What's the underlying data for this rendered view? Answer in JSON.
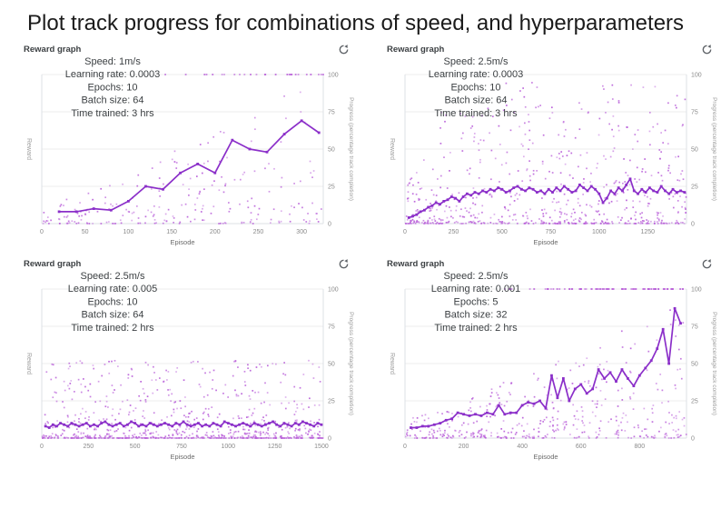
{
  "title": "Plot track progress for combinations of speed, and hyperparameters",
  "colors": {
    "line": "#8b2fc9",
    "scatter": "#b95fd9",
    "grid": "#ececec",
    "axis": "#dde1e6",
    "tick_text": "#8a8a8a",
    "label_text": "#6b6b6b",
    "axis_title": "#9e9e9e",
    "annotation": "#3c4043",
    "header": "#3c4043",
    "icon": "#5f6368"
  },
  "chart_data": [
    {
      "type": "scatter",
      "header": "Reward graph",
      "icon": "refresh-icon",
      "xlabel": "Episode",
      "ylabel_left": "Reward",
      "ylabel_right": "Progress (percentage track completion)",
      "ylim": [
        0,
        100
      ],
      "y_ticks_right": [
        0,
        25,
        50,
        75,
        100
      ],
      "x_ticks": [
        0,
        50,
        100,
        150,
        200,
        250,
        300
      ],
      "x_max": 325,
      "annotations": [
        "Speed: 1m/s",
        "Learning rate: 0.0003",
        "Epochs: 10",
        "Batch size: 64",
        "Time trained: 3 hrs"
      ],
      "line": {
        "x_start": 20,
        "x_step": 20,
        "y": [
          8,
          8,
          10,
          9,
          15,
          25,
          23,
          34,
          40,
          34,
          56,
          50,
          48,
          60,
          69,
          61
        ]
      },
      "scatter": {
        "seed": 11,
        "count": 235,
        "y_power": 2.2,
        "y_base": 14,
        "y_growth": 86,
        "growth_power": 1.2,
        "ramp_x": 0,
        "ramp_min": 1,
        "top_row": {
          "count": 26,
          "x_min": 130,
          "x_max": 325,
          "skew": 0.55
        }
      }
    },
    {
      "type": "scatter",
      "header": "Reward graph",
      "icon": "refresh-icon",
      "xlabel": "Episode",
      "ylabel_left": "Reward",
      "ylabel_right": "Progress (percentage track completion)",
      "ylim": [
        0,
        100
      ],
      "y_ticks_right": [
        0,
        25,
        50,
        75,
        100
      ],
      "x_ticks": [
        0,
        250,
        500,
        750,
        1000,
        1250
      ],
      "x_max": 1450,
      "annotations": [
        "Speed: 2.5m/s",
        "Learning rate: 0.0003",
        "Epochs: 10",
        "Batch size: 64",
        "Time trained: 3 hrs"
      ],
      "line": {
        "x_start": 20,
        "x_step": 20,
        "y": [
          4,
          5,
          6,
          8,
          9,
          11,
          12,
          14,
          13,
          15,
          16,
          18,
          17,
          15,
          18,
          20,
          19,
          21,
          20,
          22,
          21,
          23,
          22,
          24,
          23,
          21,
          22,
          24,
          25,
          23,
          22,
          24,
          23,
          21,
          22,
          20,
          23,
          21,
          24,
          22,
          25,
          23,
          21,
          22,
          26,
          24,
          22,
          25,
          23,
          20,
          14,
          17,
          22,
          20,
          24,
          22,
          26,
          30,
          22,
          20,
          23,
          21,
          24,
          22,
          21,
          25,
          22,
          20,
          23,
          21,
          22,
          21
        ]
      },
      "scatter": {
        "seed": 22,
        "count": 680,
        "y_power": 3,
        "y_base": 95,
        "y_growth": 0,
        "growth_power": 1,
        "ramp_x": 250,
        "ramp_min": 0.25,
        "top_row": null
      }
    },
    {
      "type": "scatter",
      "header": "Reward graph",
      "icon": "refresh-icon",
      "xlabel": "Episode",
      "ylabel_left": "Reward",
      "ylabel_right": "Progress (percentage track completion)",
      "ylim": [
        0,
        100
      ],
      "y_ticks_right": [
        0,
        25,
        50,
        75,
        100
      ],
      "x_ticks": [
        0,
        250,
        500,
        750,
        1000,
        1250,
        1500
      ],
      "x_max": 1510,
      "annotations": [
        "Speed: 2.5m/s",
        "Learning rate: 0.005",
        "Epochs: 10",
        "Batch size: 64",
        "Time trained: 2 hrs"
      ],
      "line": {
        "x_start": 20,
        "x_step": 20,
        "y": [
          8,
          7,
          9,
          8,
          10,
          9,
          8,
          10,
          9,
          8,
          9,
          10,
          8,
          9,
          8,
          10,
          11,
          9,
          8,
          9,
          10,
          8,
          9,
          11,
          10,
          8,
          9,
          8,
          10,
          9,
          8,
          9,
          10,
          9,
          8,
          10,
          9,
          11,
          9,
          8,
          9,
          10,
          8,
          9,
          8,
          10,
          9,
          8,
          11,
          10,
          9,
          8,
          9,
          10,
          9,
          8,
          10,
          9,
          8,
          9,
          10,
          11,
          9,
          8,
          10,
          9,
          8,
          10,
          9,
          11,
          10,
          9,
          8,
          10,
          9
        ]
      },
      "scatter": {
        "seed": 33,
        "count": 780,
        "y_power": 4.5,
        "y_base": 52,
        "y_growth": 0,
        "growth_power": 1,
        "ramp_x": 0,
        "ramp_min": 1,
        "top_row": null
      }
    },
    {
      "type": "scatter",
      "header": "Reward graph",
      "icon": "refresh-icon",
      "xlabel": "Episode",
      "ylabel_left": "Reward",
      "ylabel_right": "Progress (percentage track completion)",
      "ylim": [
        0,
        100
      ],
      "y_ticks_right": [
        0,
        25,
        50,
        75,
        100
      ],
      "x_ticks": [
        0,
        200,
        400,
        600,
        800
      ],
      "x_max": 960,
      "annotations": [
        "Speed: 2.5m/s",
        "Learning rate: 0.001",
        "Epochs: 5",
        "Batch size: 32",
        "Time trained: 2 hrs"
      ],
      "line": {
        "x_start": 20,
        "x_step": 20,
        "y": [
          7,
          7,
          8,
          8,
          9,
          10,
          12,
          13,
          17,
          16,
          15,
          16,
          15,
          17,
          16,
          22,
          16,
          17,
          17,
          22,
          24,
          23,
          25,
          20,
          42,
          27,
          40,
          25,
          33,
          36,
          30,
          33,
          46,
          40,
          44,
          38,
          46,
          40,
          35,
          42,
          47,
          52,
          60,
          73,
          50,
          87,
          77
        ]
      },
      "scatter": {
        "seed": 44,
        "count": 430,
        "y_power": 2.3,
        "y_base": 12,
        "y_growth": 80,
        "growth_power": 1.1,
        "ramp_x": 0,
        "ramp_min": 1,
        "top_row": {
          "count": 88,
          "x_min": 290,
          "x_max": 950,
          "skew": 0.6
        }
      }
    }
  ]
}
